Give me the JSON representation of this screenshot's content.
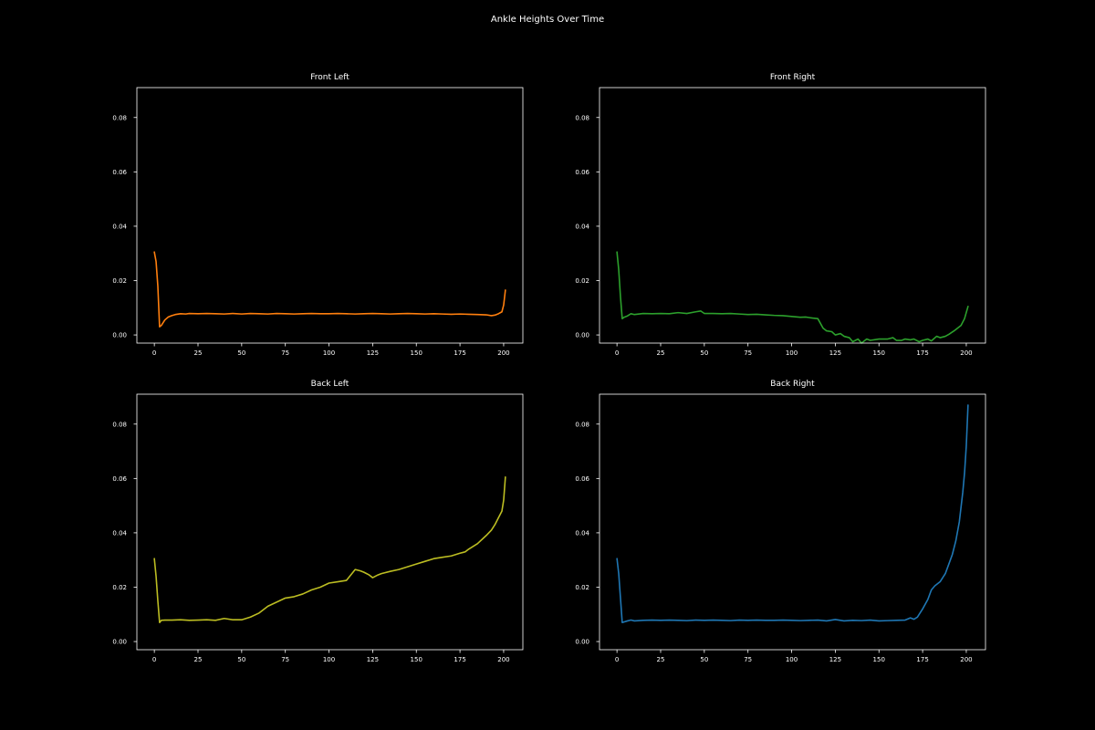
{
  "figure": {
    "title": "Ankle Heights Over Time",
    "background": "#000000",
    "text_color": "#ffffff"
  },
  "chart_data": [
    {
      "type": "line",
      "title": "Front Left",
      "xlabel": "",
      "ylabel": "",
      "xlim": [
        -10,
        211
      ],
      "ylim": [
        -0.003,
        0.091
      ],
      "x_ticks": [
        0,
        25,
        50,
        75,
        100,
        125,
        150,
        175,
        200
      ],
      "y_ticks": [
        0.0,
        0.02,
        0.04,
        0.06,
        0.08
      ],
      "y_tick_labels": [
        "0.00",
        "0.02",
        "0.04",
        "0.06",
        "0.08"
      ],
      "grid": false,
      "series": [
        {
          "color": "#ff7f0e",
          "x": [
            0,
            1,
            2,
            3,
            4,
            5,
            6,
            8,
            10,
            12,
            15,
            18,
            20,
            25,
            30,
            35,
            40,
            45,
            50,
            55,
            60,
            65,
            70,
            75,
            80,
            85,
            90,
            95,
            100,
            105,
            110,
            115,
            120,
            125,
            130,
            135,
            140,
            145,
            150,
            155,
            160,
            165,
            170,
            175,
            180,
            185,
            190,
            193,
            195,
            197,
            199,
            200,
            201
          ],
          "y": [
            0.0305,
            0.027,
            0.018,
            0.003,
            0.0035,
            0.0045,
            0.0055,
            0.0066,
            0.0071,
            0.0075,
            0.0078,
            0.0077,
            0.0079,
            0.0078,
            0.0079,
            0.0078,
            0.0077,
            0.0079,
            0.0077,
            0.0079,
            0.0078,
            0.0077,
            0.0079,
            0.0078,
            0.0077,
            0.0078,
            0.0079,
            0.0078,
            0.0078,
            0.0079,
            0.0078,
            0.0077,
            0.0078,
            0.0079,
            0.0078,
            0.0077,
            0.0078,
            0.0079,
            0.0078,
            0.0077,
            0.0078,
            0.0077,
            0.0076,
            0.0077,
            0.0076,
            0.0075,
            0.0074,
            0.0071,
            0.0073,
            0.0078,
            0.0085,
            0.011,
            0.0165
          ]
        }
      ]
    },
    {
      "type": "line",
      "title": "Front Right",
      "xlabel": "",
      "ylabel": "",
      "xlim": [
        -10,
        211
      ],
      "ylim": [
        -0.003,
        0.091
      ],
      "x_ticks": [
        0,
        25,
        50,
        75,
        100,
        125,
        150,
        175,
        200
      ],
      "y_ticks": [
        0.0,
        0.02,
        0.04,
        0.06,
        0.08
      ],
      "y_tick_labels": [
        "0.00",
        "0.02",
        "0.04",
        "0.06",
        "0.08"
      ],
      "grid": false,
      "series": [
        {
          "color": "#2ca02c",
          "x": [
            0,
            1,
            2,
            3,
            4,
            6,
            8,
            10,
            15,
            20,
            25,
            30,
            35,
            40,
            45,
            48,
            50,
            55,
            60,
            65,
            70,
            75,
            80,
            85,
            90,
            95,
            100,
            105,
            108,
            110,
            112,
            115,
            118,
            120,
            123,
            125,
            128,
            130,
            133,
            135,
            138,
            140,
            143,
            145,
            150,
            155,
            158,
            160,
            163,
            165,
            168,
            170,
            173,
            175,
            178,
            180,
            183,
            185,
            188,
            190,
            193,
            195,
            197,
            199,
            201
          ],
          "y": [
            0.0305,
            0.024,
            0.014,
            0.006,
            0.0065,
            0.007,
            0.0078,
            0.0075,
            0.0079,
            0.0078,
            0.0079,
            0.0078,
            0.0082,
            0.0079,
            0.0085,
            0.0088,
            0.0079,
            0.0079,
            0.0078,
            0.0079,
            0.0077,
            0.0075,
            0.0076,
            0.0074,
            0.0072,
            0.0071,
            0.0068,
            0.0065,
            0.0066,
            0.0064,
            0.0062,
            0.006,
            0.0025,
            0.0015,
            0.0012,
            0.0,
            0.0005,
            -0.0005,
            -0.001,
            -0.0025,
            -0.0015,
            -0.003,
            -0.0015,
            -0.002,
            -0.0015,
            -0.0015,
            -0.001,
            -0.002,
            -0.002,
            -0.0015,
            -0.0018,
            -0.0015,
            -0.0025,
            -0.002,
            -0.0015,
            -0.0022,
            -0.0005,
            -0.001,
            -0.0005,
            0.0002,
            0.0015,
            0.0025,
            0.0035,
            0.006,
            0.0105
          ]
        }
      ]
    },
    {
      "type": "line",
      "title": "Back Left",
      "xlabel": "",
      "ylabel": "",
      "xlim": [
        -10,
        211
      ],
      "ylim": [
        -0.003,
        0.091
      ],
      "x_ticks": [
        0,
        25,
        50,
        75,
        100,
        125,
        150,
        175,
        200
      ],
      "y_ticks": [
        0.0,
        0.02,
        0.04,
        0.06,
        0.08
      ],
      "y_tick_labels": [
        "0.00",
        "0.02",
        "0.04",
        "0.06",
        "0.08"
      ],
      "grid": false,
      "series": [
        {
          "color": "#bcbd22",
          "x": [
            0,
            1,
            2,
            3,
            4,
            6,
            10,
            15,
            20,
            25,
            30,
            35,
            40,
            45,
            50,
            55,
            60,
            65,
            70,
            75,
            80,
            85,
            90,
            95,
            100,
            105,
            110,
            115,
            118,
            120,
            123,
            125,
            128,
            130,
            135,
            140,
            145,
            150,
            155,
            160,
            165,
            170,
            175,
            178,
            180,
            185,
            190,
            193,
            195,
            197,
            199,
            200,
            201
          ],
          "y": [
            0.0305,
            0.024,
            0.015,
            0.007,
            0.0078,
            0.0079,
            0.0079,
            0.008,
            0.0078,
            0.0079,
            0.008,
            0.0078,
            0.0085,
            0.008,
            0.008,
            0.009,
            0.0105,
            0.013,
            0.0145,
            0.016,
            0.0165,
            0.0175,
            0.019,
            0.02,
            0.0215,
            0.022,
            0.0225,
            0.0265,
            0.026,
            0.0255,
            0.0245,
            0.0235,
            0.0245,
            0.025,
            0.0258,
            0.0265,
            0.0275,
            0.0285,
            0.0295,
            0.0305,
            0.031,
            0.0315,
            0.0325,
            0.033,
            0.034,
            0.036,
            0.039,
            0.041,
            0.043,
            0.0455,
            0.048,
            0.052,
            0.0605
          ]
        }
      ]
    },
    {
      "type": "line",
      "title": "Back Right",
      "xlabel": "",
      "ylabel": "",
      "xlim": [
        -10,
        211
      ],
      "ylim": [
        -0.003,
        0.091
      ],
      "x_ticks": [
        0,
        25,
        50,
        75,
        100,
        125,
        150,
        175,
        200
      ],
      "y_ticks": [
        0.0,
        0.02,
        0.04,
        0.06,
        0.08
      ],
      "y_tick_labels": [
        "0.00",
        "0.02",
        "0.04",
        "0.06",
        "0.08"
      ],
      "grid": false,
      "series": [
        {
          "color": "#1f77b4",
          "x": [
            0,
            1,
            2,
            3,
            4,
            6,
            8,
            10,
            15,
            20,
            25,
            30,
            35,
            40,
            45,
            50,
            55,
            60,
            65,
            70,
            75,
            80,
            85,
            90,
            95,
            100,
            105,
            110,
            115,
            120,
            125,
            130,
            135,
            140,
            145,
            150,
            155,
            160,
            165,
            168,
            170,
            172,
            175,
            178,
            180,
            182,
            185,
            188,
            190,
            192,
            194,
            196,
            198,
            199,
            200,
            201
          ],
          "y": [
            0.0305,
            0.025,
            0.016,
            0.007,
            0.0072,
            0.0076,
            0.0079,
            0.0076,
            0.0078,
            0.0079,
            0.0078,
            0.0079,
            0.0078,
            0.0077,
            0.0079,
            0.0078,
            0.0079,
            0.0078,
            0.0077,
            0.0079,
            0.0078,
            0.0079,
            0.0078,
            0.0078,
            0.0079,
            0.0078,
            0.0077,
            0.0078,
            0.0079,
            0.0076,
            0.0081,
            0.0076,
            0.0078,
            0.0077,
            0.0079,
            0.0076,
            0.0077,
            0.0078,
            0.0079,
            0.0087,
            0.0082,
            0.009,
            0.012,
            0.0155,
            0.019,
            0.0205,
            0.022,
            0.025,
            0.0285,
            0.032,
            0.037,
            0.044,
            0.055,
            0.062,
            0.072,
            0.087
          ]
        }
      ]
    }
  ]
}
